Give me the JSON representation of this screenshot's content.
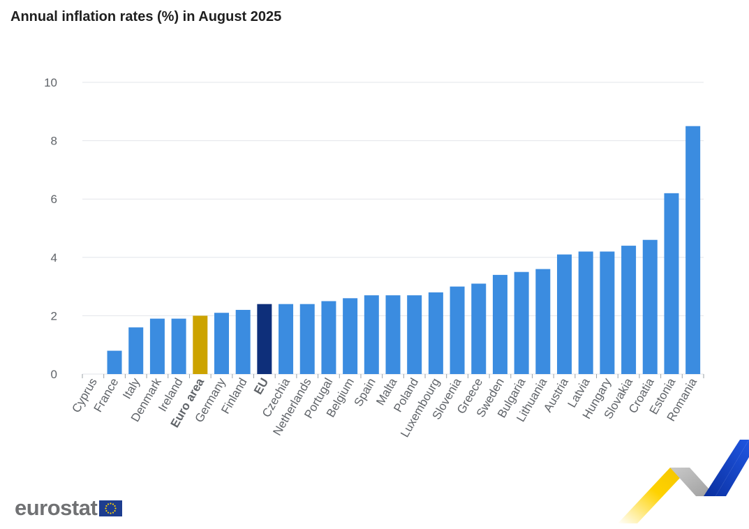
{
  "title": "Annual inflation rates (%) in August 2025",
  "logo": {
    "text": "eurostat",
    "flag": "EU flag"
  },
  "colors": {
    "default": "#3b8ce0",
    "euro_area": "#cca300",
    "eu": "#0e2f7a",
    "grid": "#e2e5ea",
    "axis_text": "#5f6368"
  },
  "chart_data": {
    "type": "bar",
    "title": "Annual inflation rates (%) in August 2025",
    "xlabel": "",
    "ylabel": "",
    "ylim": [
      0,
      10
    ],
    "yticks": [
      0,
      2,
      4,
      6,
      8,
      10
    ],
    "grid": true,
    "categories": [
      "Cyprus",
      "France",
      "Italy",
      "Denmark",
      "Ireland",
      "Euro area",
      "Germany",
      "Finland",
      "EU",
      "Czechia",
      "Netherlands",
      "Portugal",
      "Belgium",
      "Spain",
      "Malta",
      "Poland",
      "Luxembourg",
      "Slovenia",
      "Greece",
      "Sweden",
      "Bulgaria",
      "Lithuania",
      "Austria",
      "Latvia",
      "Hungary",
      "Slovakia",
      "Croatia",
      "Estonia",
      "Romania"
    ],
    "values": [
      0.0,
      0.8,
      1.6,
      1.9,
      1.9,
      2.0,
      2.1,
      2.2,
      2.4,
      2.4,
      2.4,
      2.5,
      2.6,
      2.7,
      2.7,
      2.7,
      2.8,
      3.0,
      3.1,
      3.4,
      3.5,
      3.6,
      4.1,
      4.2,
      4.2,
      4.4,
      4.6,
      6.2,
      8.5
    ],
    "highlight": {
      "Euro area": "euro_area",
      "EU": "eu"
    }
  }
}
